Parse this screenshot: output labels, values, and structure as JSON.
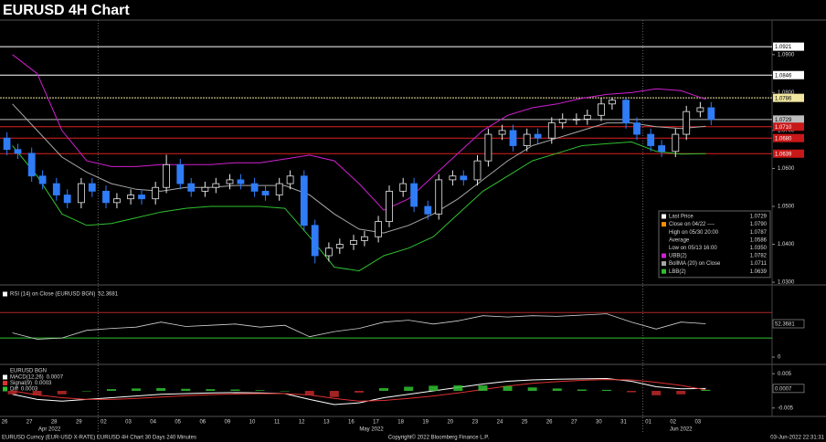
{
  "title": "EURUSD 4H Chart",
  "chart_data": [
    {
      "type": "candlestick",
      "open": [
        1.068,
        1.065,
        1.064,
        1.058,
        1.056,
        1.053,
        1.051,
        1.056,
        1.054,
        1.051,
        1.052,
        1.053,
        1.052,
        1.055,
        1.061,
        1.056,
        1.054,
        1.055,
        1.056,
        1.057,
        1.056,
        1.054,
        1.053,
        1.056,
        1.058,
        1.045,
        1.037,
        1.039,
        1.04,
        1.041,
        1.042,
        1.046,
        1.054,
        1.056,
        1.05,
        1.048,
        1.057,
        1.058,
        1.057,
        1.062,
        1.069,
        1.07,
        1.066,
        1.069,
        1.068,
        1.072,
        1.073,
        1.073,
        1.074,
        1.077,
        1.078,
        1.072,
        1.069,
        1.066,
        1.0645,
        1.069,
        1.075,
        1.076
      ],
      "high": [
        1.0695,
        1.0665,
        1.0655,
        1.0595,
        1.0575,
        1.0545,
        1.0575,
        1.0575,
        1.0555,
        1.0535,
        1.0545,
        1.0545,
        1.0565,
        1.0636,
        1.0625,
        1.0575,
        1.0565,
        1.0575,
        1.0585,
        1.0585,
        1.0575,
        1.0555,
        1.0575,
        1.0595,
        1.0595,
        1.0465,
        1.0405,
        1.0415,
        1.0425,
        1.0435,
        1.0475,
        1.0555,
        1.0575,
        1.0575,
        1.0515,
        1.0585,
        1.0595,
        1.0595,
        1.0635,
        1.0705,
        1.0715,
        1.0715,
        1.0705,
        1.0705,
        1.0735,
        1.0745,
        1.0745,
        1.0755,
        1.0785,
        1.0787,
        1.0785,
        1.0735,
        1.0705,
        1.0675,
        1.0705,
        1.0765,
        1.0775,
        1.0775
      ],
      "low": [
        1.0635,
        1.0625,
        1.0565,
        1.0545,
        1.0515,
        1.0495,
        1.0495,
        1.0525,
        1.0495,
        1.0495,
        1.0505,
        1.0505,
        1.0505,
        1.0535,
        1.0545,
        1.0525,
        1.0525,
        1.0535,
        1.0545,
        1.0545,
        1.0525,
        1.0515,
        1.0515,
        1.0545,
        1.0435,
        1.035,
        1.0355,
        1.0375,
        1.0385,
        1.0395,
        1.0405,
        1.0445,
        1.0525,
        1.0485,
        1.0465,
        1.0465,
        1.0555,
        1.0555,
        1.0555,
        1.0605,
        1.0675,
        1.0645,
        1.0645,
        1.0665,
        1.0665,
        1.0705,
        1.0715,
        1.0715,
        1.0725,
        1.0755,
        1.0705,
        1.0675,
        1.0645,
        1.063,
        1.063,
        1.0675,
        1.0735,
        1.0714
      ],
      "close": [
        1.065,
        1.064,
        1.058,
        1.056,
        1.053,
        1.051,
        1.056,
        1.054,
        1.051,
        1.052,
        1.053,
        1.052,
        1.055,
        1.061,
        1.056,
        1.054,
        1.055,
        1.056,
        1.057,
        1.056,
        1.054,
        1.053,
        1.056,
        1.058,
        1.045,
        1.037,
        1.039,
        1.04,
        1.041,
        1.042,
        1.046,
        1.054,
        1.056,
        1.05,
        1.048,
        1.057,
        1.058,
        1.057,
        1.062,
        1.069,
        1.07,
        1.066,
        1.069,
        1.068,
        1.072,
        1.073,
        1.073,
        1.074,
        1.077,
        1.078,
        1.072,
        1.069,
        1.066,
        1.0645,
        1.069,
        1.075,
        1.076,
        1.0729
      ],
      "up_color": "#e8e8e8",
      "down_color": "#2f7cf6",
      "ylim": [
        1.0293,
        1.0991
      ],
      "yticks": [
        {
          "value": 1.03,
          "label": "1.0300"
        },
        {
          "value": 1.04,
          "label": "1.0400"
        },
        {
          "value": 1.05,
          "label": "1.0500"
        },
        {
          "value": 1.06,
          "label": "1.0600"
        },
        {
          "value": 1.07,
          "label": "1.0700"
        },
        {
          "value": 1.08,
          "label": "1.0800"
        },
        {
          "value": 1.09,
          "label": "1.0900"
        }
      ],
      "series": [
        {
          "name": "UBB(2)",
          "color": "#d020d0",
          "last_label": "1.0782",
          "values": [
            1.09,
            1.085,
            1.07,
            1.062,
            1.0605,
            1.0605,
            1.061,
            1.061,
            1.061,
            1.0615,
            1.0615,
            1.0625,
            1.0635,
            1.062,
            1.056,
            1.049,
            1.052,
            1.058,
            1.064,
            1.07,
            1.074,
            1.076,
            1.077,
            1.0785,
            1.0795,
            1.08,
            1.081,
            1.0805,
            1.0782
          ]
        },
        {
          "name": "BollMA (20) on Close",
          "color": "#a8a8a8",
          "last_label": "1.0711",
          "values": [
            1.077,
            1.07,
            1.063,
            1.059,
            1.056,
            1.0545,
            1.054,
            1.055,
            1.055,
            1.0555,
            1.0555,
            1.0555,
            1.053,
            1.048,
            1.044,
            1.043,
            1.045,
            1.048,
            1.052,
            1.057,
            1.062,
            1.066,
            1.068,
            1.07,
            1.072,
            1.072,
            1.071,
            1.0705,
            1.0711
          ]
        },
        {
          "name": "LBB(2)",
          "color": "#30c030",
          "last_label": "1.0639",
          "values": [
            1.066,
            1.058,
            1.048,
            1.045,
            1.0455,
            1.047,
            1.0485,
            1.0495,
            1.05,
            1.05,
            1.05,
            1.0495,
            1.042,
            1.034,
            1.033,
            1.037,
            1.039,
            1.042,
            1.048,
            1.054,
            1.058,
            1.062,
            1.064,
            1.066,
            1.0665,
            1.067,
            1.0645,
            1.0638,
            1.0639
          ]
        }
      ],
      "levels": [
        {
          "value": 1.0921,
          "color": "#ffffff"
        },
        {
          "value": 1.0846,
          "color": "#ffffff"
        },
        {
          "value": 1.0786,
          "color": "#f0e6a0"
        },
        {
          "value": 1.0729,
          "color": "#bdbdbd"
        },
        {
          "value": 1.071,
          "label": "1.0710",
          "color": "#e02020"
        },
        {
          "value": 1.068,
          "label": "1.0680",
          "color": "#e02020"
        },
        {
          "value": 1.0639,
          "color": "#e02020"
        }
      ],
      "legend": [
        {
          "name": "Last Price",
          "value": "1.0729",
          "color": "#ffffff"
        },
        {
          "name": "Close on 04/22 ----",
          "value": "1.0790",
          "color": "#ff8c00"
        },
        {
          "name": "High on 05/30 20:00",
          "value": "1.0787"
        },
        {
          "name": "Average",
          "value": "1.0586"
        },
        {
          "name": "Low on 05/13 16:00",
          "value": "1.0350"
        }
      ]
    },
    {
      "type": "line",
      "label": "RSI (14) on Close (EURUSD BGN)",
      "color": "#d0d0d0",
      "values": [
        38,
        28,
        30,
        42,
        45,
        47,
        55,
        48,
        50,
        52,
        47,
        50,
        32,
        40,
        45,
        55,
        58,
        52,
        57,
        65,
        63,
        65,
        64,
        66,
        68,
        55,
        44,
        55,
        52.3681
      ],
      "levels": [
        {
          "value": 70,
          "color": "#b02828"
        },
        {
          "value": 30,
          "color": "#30c030"
        }
      ],
      "ylim": [
        -10,
        109
      ],
      "yticks": [
        0
      ]
    },
    {
      "type": "macd",
      "source": "EURUSD BGN",
      "ylim": [
        -0.0072,
        0.0072
      ],
      "yticks": [
        0.005,
        -0.005
      ],
      "series": [
        {
          "name": "MACD(12,26)",
          "color": "#ffffff",
          "values": [
            -0.001,
            -0.0025,
            -0.003,
            -0.0025,
            -0.002,
            -0.0015,
            -0.001,
            -0.0008,
            -0.0006,
            -0.0005,
            -0.0006,
            -0.0008,
            -0.0025,
            -0.004,
            -0.0035,
            -0.002,
            -0.001,
            0,
            0.001,
            0.002,
            0.0028,
            0.0032,
            0.0034,
            0.0035,
            0.0036,
            0.0028,
            0.0012,
            0.0006,
            0.0007
          ]
        },
        {
          "name": "Signal(9)",
          "color": "#e03030",
          "values": [
            0,
            -0.0012,
            -0.002,
            -0.0025,
            -0.0025,
            -0.0022,
            -0.0018,
            -0.0014,
            -0.0011,
            -0.0009,
            -0.0008,
            -0.0008,
            -0.0012,
            -0.0022,
            -0.003,
            -0.0028,
            -0.0022,
            -0.0015,
            -0.0006,
            0.0004,
            0.0014,
            0.0022,
            0.0027,
            0.0031,
            0.0033,
            0.0032,
            0.0025,
            0.0016,
            0.0003
          ]
        },
        {
          "name": "Diff",
          "color": "#30c030",
          "bars": true,
          "values": [
            -0.001,
            -0.0013,
            -0.001,
            0,
            0.0005,
            0.0007,
            0.0008,
            0.0006,
            0.0005,
            0.0004,
            0.0002,
            0,
            -0.0013,
            -0.0018,
            -0.0005,
            0.0008,
            0.0012,
            0.0015,
            0.0016,
            0.0016,
            0.0014,
            0.001,
            0.0007,
            0.0004,
            0.0003,
            -0.0004,
            -0.0013,
            -0.001,
            0.0003
          ]
        }
      ]
    }
  ],
  "x_axis": {
    "days": [
      "26",
      "27",
      "28",
      "29",
      "02",
      "03",
      "04",
      "05",
      "06",
      "09",
      "10",
      "11",
      "12",
      "13",
      "16",
      "17",
      "18",
      "19",
      "20",
      "23",
      "24",
      "25",
      "26",
      "27",
      "30",
      "31",
      "01",
      "02",
      "03"
    ],
    "months": [
      "Apr 2022",
      "May 2022",
      "Jun 2022"
    ]
  },
  "footer": {
    "left": "EURUSD Curncy (EUR-USD X-RATE) EURUSD 4H Chart 30 Days 240 Minutes",
    "center": "Copyright© 2022 Bloomberg Finance L.P.",
    "right": "03-Jun-2022 22:31:31"
  }
}
